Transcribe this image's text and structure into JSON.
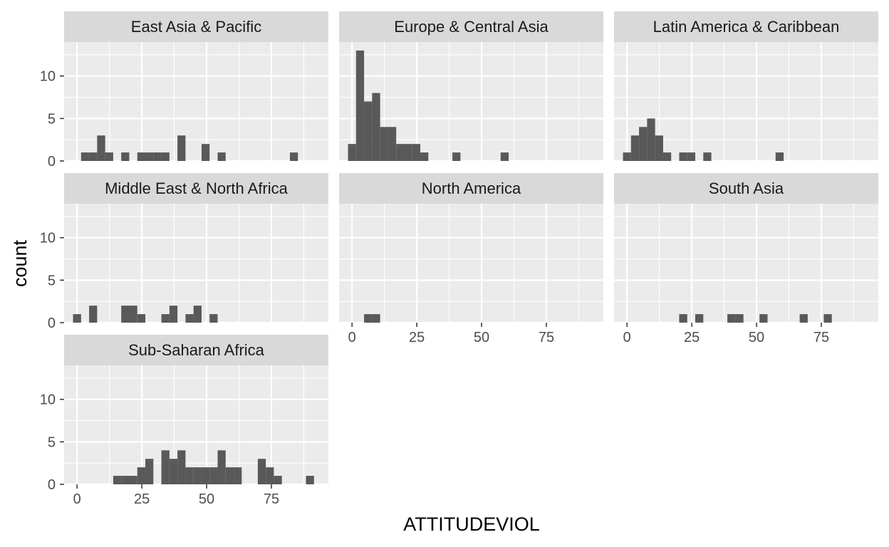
{
  "chart_data": {
    "type": "histogram",
    "facet_layout": "3 columns x 3 rows, free-standing panels with shared scales",
    "xlabel": "ATTITUDEVIOL",
    "ylabel": "count",
    "bin_width": 3.1,
    "xlim": [
      -5,
      97
    ],
    "ylim": [
      0,
      14
    ],
    "x_ticks": [
      0,
      25,
      50,
      75
    ],
    "y_ticks": [
      0,
      5,
      10
    ],
    "grid": true,
    "colors": {
      "bar": "#595959",
      "panel_bg": "#ebebeb",
      "grid": "#ffffff",
      "strip_bg": "#d9d9d9"
    },
    "panels": [
      {
        "name": "East Asia & Pacific",
        "bins": [
          [
            3.1,
            1
          ],
          [
            6.2,
            1
          ],
          [
            9.3,
            3
          ],
          [
            12.4,
            1
          ],
          [
            18.6,
            1
          ],
          [
            24.8,
            1
          ],
          [
            27.9,
            1
          ],
          [
            31.0,
            1
          ],
          [
            34.1,
            1
          ],
          [
            40.3,
            3
          ],
          [
            49.6,
            2
          ],
          [
            55.8,
            1
          ],
          [
            83.7,
            1
          ]
        ]
      },
      {
        "name": "Europe & Central Asia",
        "bins": [
          [
            0,
            2
          ],
          [
            3.1,
            13
          ],
          [
            6.2,
            7
          ],
          [
            9.3,
            8
          ],
          [
            12.4,
            4
          ],
          [
            15.5,
            4
          ],
          [
            18.6,
            2
          ],
          [
            21.7,
            2
          ],
          [
            24.8,
            2
          ],
          [
            27.9,
            1
          ],
          [
            40.3,
            1
          ],
          [
            58.9,
            1
          ]
        ]
      },
      {
        "name": "Latin America & Caribbean",
        "bins": [
          [
            0,
            1
          ],
          [
            3.1,
            3
          ],
          [
            6.2,
            4
          ],
          [
            9.3,
            5
          ],
          [
            12.4,
            3
          ],
          [
            15.5,
            1
          ],
          [
            21.7,
            1
          ],
          [
            24.8,
            1
          ],
          [
            31.0,
            1
          ],
          [
            58.9,
            1
          ]
        ]
      },
      {
        "name": "Middle East & North Africa",
        "bins": [
          [
            0,
            1
          ],
          [
            6.2,
            2
          ],
          [
            18.6,
            2
          ],
          [
            21.7,
            2
          ],
          [
            24.8,
            1
          ],
          [
            34.1,
            1
          ],
          [
            37.2,
            2
          ],
          [
            43.4,
            1
          ],
          [
            46.5,
            2
          ],
          [
            52.7,
            1
          ]
        ]
      },
      {
        "name": "North America",
        "bins": [
          [
            6.2,
            1
          ],
          [
            9.3,
            1
          ]
        ]
      },
      {
        "name": "South Asia",
        "bins": [
          [
            21.7,
            1
          ],
          [
            27.9,
            1
          ],
          [
            40.3,
            1
          ],
          [
            43.4,
            1
          ],
          [
            52.7,
            1
          ],
          [
            68.2,
            1
          ],
          [
            77.5,
            1
          ]
        ]
      },
      {
        "name": "Sub-Saharan Africa",
        "bins": [
          [
            15.5,
            1
          ],
          [
            18.6,
            1
          ],
          [
            21.7,
            1
          ],
          [
            24.8,
            2
          ],
          [
            27.9,
            3
          ],
          [
            34.1,
            4
          ],
          [
            37.2,
            3
          ],
          [
            40.3,
            4
          ],
          [
            43.4,
            2
          ],
          [
            46.5,
            2
          ],
          [
            49.6,
            2
          ],
          [
            52.7,
            2
          ],
          [
            55.8,
            4
          ],
          [
            58.9,
            2
          ],
          [
            62.0,
            2
          ],
          [
            71.3,
            3
          ],
          [
            74.4,
            2
          ],
          [
            77.5,
            1
          ],
          [
            89.9,
            1
          ]
        ]
      }
    ]
  }
}
